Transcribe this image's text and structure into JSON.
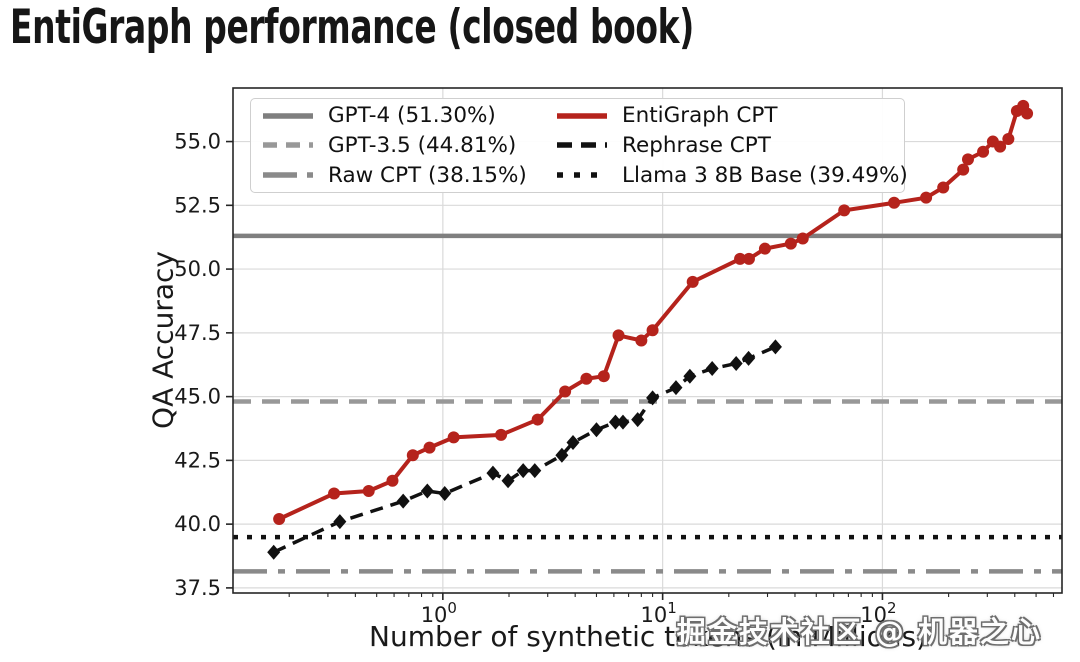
{
  "watermark_text": "掘金技术社区 @ 机器之心",
  "chart_data": {
    "type": "line",
    "title": "EntiGraph performance (closed book)",
    "xlabel": "Number of synthetic tokens (in Millions)",
    "ylabel": "QA Accuracy",
    "x_scale": "log10",
    "xlim": [
      0.111,
      656
    ],
    "ylim": [
      37.3,
      57.1
    ],
    "y_ticks": [
      37.5,
      40.0,
      42.5,
      45.0,
      47.5,
      50.0,
      52.5,
      55.0
    ],
    "x_major_ticks": [
      1,
      10,
      100
    ],
    "grid": true,
    "legend_position": "upper-left",
    "colors": {
      "entigraph_red": "#b5231c",
      "gpt4_gray": "#7f7f7f",
      "gpt35_gray": "#989898",
      "raw_cpt_gray": "#8a8a8a",
      "black_line": "#111111",
      "gridline": "#dadada",
      "spine": "#262626"
    },
    "reference_lines": [
      {
        "name": "gpt4",
        "value": 51.3,
        "color": "#7f7f7f",
        "dash": "",
        "width": 4.5
      },
      {
        "name": "gpt35",
        "value": 44.81,
        "color": "#989898",
        "dash": "18 11",
        "width": 4.5
      },
      {
        "name": "raw-cpt",
        "value": 38.15,
        "color": "#8a8a8a",
        "dash": "34 11 7 11",
        "width": 4.5
      },
      {
        "name": "llama3-8b-base",
        "value": 39.49,
        "color": "#111111",
        "dash": "5 9",
        "width": 4.5
      }
    ],
    "series": [
      {
        "name": "EntiGraph CPT",
        "color": "#b5231c",
        "dash": "",
        "width": 4,
        "marker": "circle",
        "marker_size": 6,
        "points": [
          [
            0.18,
            40.2
          ],
          [
            0.32,
            41.2
          ],
          [
            0.46,
            41.3
          ],
          [
            0.59,
            41.7
          ],
          [
            0.73,
            42.7
          ],
          [
            0.87,
            43.0
          ],
          [
            1.12,
            43.4
          ],
          [
            1.84,
            43.5
          ],
          [
            2.7,
            44.1
          ],
          [
            3.6,
            45.2
          ],
          [
            4.5,
            45.7
          ],
          [
            5.4,
            45.8
          ],
          [
            6.3,
            47.4
          ],
          [
            8.0,
            47.2
          ],
          [
            9.0,
            47.6
          ],
          [
            13.7,
            49.5
          ],
          [
            22.5,
            50.4
          ],
          [
            24.7,
            50.4
          ],
          [
            29.2,
            50.8
          ],
          [
            38.3,
            51.0
          ],
          [
            43.4,
            51.2
          ],
          [
            67,
            52.3
          ],
          [
            113,
            52.6
          ],
          [
            158,
            52.8
          ],
          [
            189,
            53.2
          ],
          [
            233,
            53.9
          ],
          [
            245,
            54.3
          ],
          [
            287,
            54.6
          ],
          [
            318,
            55.0
          ],
          [
            343,
            54.8
          ],
          [
            374,
            55.1
          ],
          [
            409,
            56.2
          ],
          [
            437,
            56.4
          ],
          [
            455,
            56.1
          ]
        ]
      },
      {
        "name": "Rephrase CPT",
        "color": "#111111",
        "dash": "13 8",
        "width": 3.5,
        "marker": "diamond",
        "marker_size": 6.5,
        "points": [
          [
            0.17,
            38.9
          ],
          [
            0.34,
            40.1
          ],
          [
            0.66,
            40.9
          ],
          [
            0.85,
            41.3
          ],
          [
            1.02,
            41.2
          ],
          [
            1.69,
            42.0
          ],
          [
            1.98,
            41.7
          ],
          [
            2.32,
            42.1
          ],
          [
            2.62,
            42.1
          ],
          [
            3.48,
            42.7
          ],
          [
            3.91,
            43.2
          ],
          [
            5.0,
            43.7
          ],
          [
            6.1,
            44.0
          ],
          [
            6.6,
            44.0
          ],
          [
            7.7,
            44.1
          ],
          [
            9.0,
            44.95
          ],
          [
            11.5,
            45.35
          ],
          [
            13.3,
            45.8
          ],
          [
            16.8,
            46.1
          ],
          [
            21.6,
            46.3
          ],
          [
            24.6,
            46.5
          ],
          [
            32.6,
            46.95
          ]
        ]
      }
    ],
    "legend_entries": [
      {
        "label": "GPT-4 (51.30%)",
        "color": "#7f7f7f",
        "dash": ""
      },
      {
        "label": "GPT-3.5 (44.81%)",
        "color": "#989898",
        "dash": "14 9"
      },
      {
        "label": "Raw CPT (38.15%)",
        "color": "#8a8a8a",
        "dash": "34 10 7 10"
      },
      {
        "label": "EntiGraph CPT",
        "color": "#b5231c",
        "dash": ""
      },
      {
        "label": "Rephrase CPT",
        "color": "#111111",
        "dash": "15 9"
      },
      {
        "label": "Llama 3 8B Base (39.49%)",
        "color": "#111111",
        "dash": "6 11"
      }
    ]
  }
}
